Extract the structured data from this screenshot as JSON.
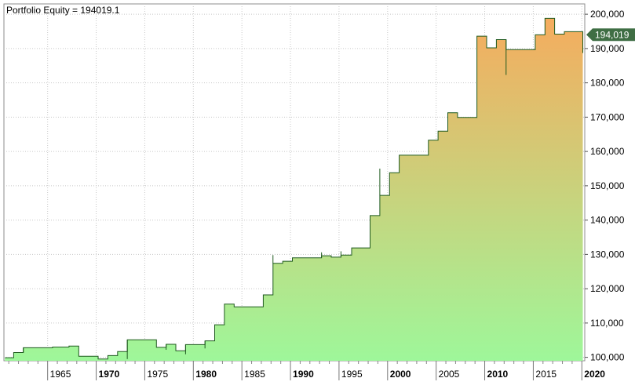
{
  "chart_data": {
    "type": "area",
    "title": "Portfolio Equity = 194019.1",
    "xlabel": "",
    "ylabel": "",
    "xlim": [
      1960.5,
      2020.3
    ],
    "ylim": [
      99000,
      203000
    ],
    "grid": true,
    "colors": {
      "fill_top": "#f5ac5e",
      "fill_bottom": "#9ef79a",
      "line": "#1f5a1f",
      "marker_bg": "#3f6e44",
      "marker_text": "#ffffff",
      "grid": "#c8c8c8"
    },
    "x_ticks": [
      {
        "value": 1965,
        "label": "1965",
        "bold": false
      },
      {
        "value": 1970,
        "label": "1970",
        "bold": true
      },
      {
        "value": 1975,
        "label": "1975",
        "bold": false
      },
      {
        "value": 1980,
        "label": "1980",
        "bold": true
      },
      {
        "value": 1985,
        "label": "1985",
        "bold": false
      },
      {
        "value": 1990,
        "label": "1990",
        "bold": true
      },
      {
        "value": 1995,
        "label": "1995",
        "bold": false
      },
      {
        "value": 2000,
        "label": "2000",
        "bold": true
      },
      {
        "value": 2005,
        "label": "2005",
        "bold": false
      },
      {
        "value": 2010,
        "label": "2010",
        "bold": true
      },
      {
        "value": 2015,
        "label": "2015",
        "bold": false
      },
      {
        "value": 2020,
        "label": "2020",
        "bold": true
      }
    ],
    "y_ticks": [
      {
        "value": 100000,
        "label": "100,000"
      },
      {
        "value": 110000,
        "label": "110,000"
      },
      {
        "value": 120000,
        "label": "120,000"
      },
      {
        "value": 130000,
        "label": "130,000"
      },
      {
        "value": 140000,
        "label": "140,000"
      },
      {
        "value": 150000,
        "label": "150,000"
      },
      {
        "value": 160000,
        "label": "160,000"
      },
      {
        "value": 170000,
        "label": "170,000"
      },
      {
        "value": 180000,
        "label": "180,000"
      },
      {
        "value": 190000,
        "label": "190,000"
      },
      {
        "value": 200000,
        "label": "200,000"
      }
    ],
    "last_value_label": "194,019",
    "last_value": 194019,
    "series": [
      {
        "points": [
          [
            1960.6,
            99900
          ],
          [
            1961.5,
            99900
          ],
          [
            1961.5,
            101400
          ],
          [
            1962.5,
            101400
          ],
          [
            1962.5,
            102800
          ],
          [
            1965.5,
            102800
          ],
          [
            1965.5,
            103000
          ],
          [
            1967.2,
            103000
          ],
          [
            1967.2,
            103300
          ],
          [
            1968.2,
            103300
          ],
          [
            1968.2,
            100300
          ],
          [
            1970.2,
            100300
          ],
          [
            1970.2,
            99500
          ],
          [
            1971.2,
            99500
          ],
          [
            1971.2,
            100500
          ],
          [
            1972.2,
            100500
          ],
          [
            1972.2,
            101700
          ],
          [
            1973.2,
            101700
          ],
          [
            1973.2,
            105100
          ],
          [
            1976.2,
            105100
          ],
          [
            1976.2,
            102900
          ],
          [
            1977.2,
            102900
          ],
          [
            1977.2,
            103800
          ],
          [
            1978.2,
            103800
          ],
          [
            1978.2,
            101900
          ],
          [
            1979.2,
            101900
          ],
          [
            1979.2,
            103700
          ],
          [
            1981.2,
            103700
          ],
          [
            1981.2,
            104800
          ],
          [
            1982.2,
            104800
          ],
          [
            1982.2,
            109500
          ],
          [
            1983.2,
            109500
          ],
          [
            1983.2,
            115500
          ],
          [
            1984.2,
            115500
          ],
          [
            1984.2,
            114700
          ],
          [
            1987.2,
            114700
          ],
          [
            1987.2,
            118200
          ],
          [
            1988.2,
            118200
          ],
          [
            1988.2,
            127400
          ],
          [
            1989.2,
            127400
          ],
          [
            1989.2,
            128000
          ],
          [
            1990.2,
            128000
          ],
          [
            1990.2,
            129000
          ],
          [
            1993.2,
            129000
          ],
          [
            1993.2,
            129600
          ],
          [
            1994.2,
            129600
          ],
          [
            1994.2,
            129200
          ],
          [
            1995.2,
            129200
          ],
          [
            1995.2,
            129800
          ],
          [
            1996.3,
            129800
          ],
          [
            1996.3,
            131900
          ],
          [
            1998.2,
            131900
          ],
          [
            1998.2,
            141300
          ],
          [
            1999.2,
            141300
          ],
          [
            1999.2,
            147200
          ],
          [
            2000.2,
            147200
          ],
          [
            2000.2,
            153800
          ],
          [
            2001.2,
            153800
          ],
          [
            2001.2,
            158900
          ],
          [
            2004.2,
            158900
          ],
          [
            2004.2,
            163300
          ],
          [
            2005.2,
            163300
          ],
          [
            2005.2,
            165900
          ],
          [
            2006.2,
            165900
          ],
          [
            2006.2,
            171300
          ],
          [
            2007.2,
            171300
          ],
          [
            2007.2,
            169900
          ],
          [
            2009.2,
            169900
          ],
          [
            2009.2,
            193600
          ],
          [
            2010.2,
            193600
          ],
          [
            2010.2,
            190200
          ],
          [
            2011.2,
            190200
          ],
          [
            2011.2,
            192600
          ],
          [
            2012.2,
            192600
          ],
          [
            2012.2,
            189700
          ],
          [
            2015.2,
            189700
          ],
          [
            2015.2,
            194000
          ],
          [
            2016.2,
            194000
          ],
          [
            2016.2,
            198800
          ],
          [
            2017.2,
            198800
          ],
          [
            2017.2,
            194200
          ],
          [
            2018.2,
            194200
          ],
          [
            2018.2,
            194900
          ],
          [
            2020.1,
            194900
          ],
          [
            2020.1,
            194019
          ]
        ]
      }
    ],
    "dips": [
      [
        1962.5,
        101400,
        102800
      ],
      [
        1973.2,
        99500,
        105100
      ],
      [
        1977.2,
        102200,
        103800
      ],
      [
        1979.2,
        100900,
        103700
      ],
      [
        1981.2,
        102600,
        104800
      ],
      [
        1988.2,
        127400,
        129800
      ],
      [
        1993.2,
        129000,
        130600
      ],
      [
        1995.2,
        129200,
        130900
      ],
      [
        1999.2,
        147200,
        155000
      ],
      [
        2012.2,
        182300,
        192600
      ],
      [
        2020.1,
        188700,
        194900
      ]
    ]
  }
}
